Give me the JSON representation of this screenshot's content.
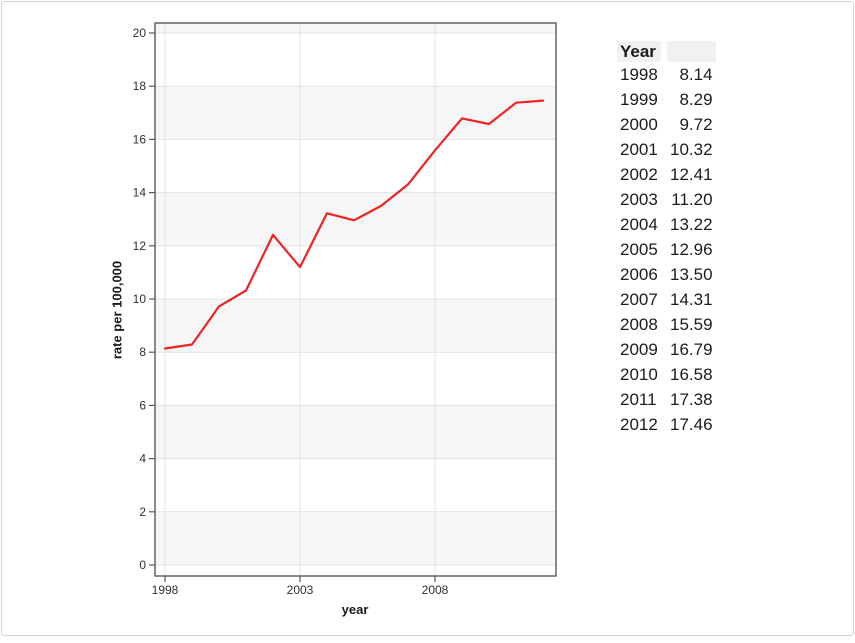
{
  "chart_data": {
    "type": "line",
    "title": "",
    "xlabel": "year",
    "ylabel": "rate per 100,000",
    "x": [
      1998,
      1999,
      2000,
      2001,
      2002,
      2003,
      2004,
      2005,
      2006,
      2007,
      2008,
      2009,
      2010,
      2011,
      2012
    ],
    "series": [
      {
        "name": "rate per 100,000",
        "values": [
          8.14,
          8.29,
          9.72,
          10.32,
          12.41,
          11.2,
          13.22,
          12.96,
          13.5,
          14.31,
          15.59,
          16.79,
          16.58,
          17.38,
          17.46
        ]
      }
    ],
    "ylim": [
      0,
      20
    ],
    "yticks": [
      0,
      2,
      4,
      6,
      8,
      10,
      12,
      14,
      16,
      18,
      20
    ],
    "xticks": [
      1998,
      2003,
      2008
    ],
    "grid": true,
    "legend": "none",
    "panel_style": "alternating horizontal bands",
    "colors": {
      "line": "#ee2424",
      "band": "#f6f6f6",
      "grid": "#e3e3e3",
      "panel_border": "#58585a",
      "tick_text": "#303030",
      "header_bg": "#f1f1f1",
      "frame_border": "#d5d5d5"
    }
  },
  "table": {
    "headers": [
      "Year",
      ""
    ],
    "rows": [
      [
        "1998",
        "8.14"
      ],
      [
        "1999",
        "8.29"
      ],
      [
        "2000",
        "9.72"
      ],
      [
        "2001",
        "10.32"
      ],
      [
        "2002",
        "12.41"
      ],
      [
        "2003",
        "11.20"
      ],
      [
        "2004",
        "13.22"
      ],
      [
        "2005",
        "12.96"
      ],
      [
        "2006",
        "13.50"
      ],
      [
        "2007",
        "14.31"
      ],
      [
        "2008",
        "15.59"
      ],
      [
        "2009",
        "16.79"
      ],
      [
        "2010",
        "16.58"
      ],
      [
        "2011",
        "17.38"
      ],
      [
        "2012",
        "17.46"
      ]
    ]
  }
}
